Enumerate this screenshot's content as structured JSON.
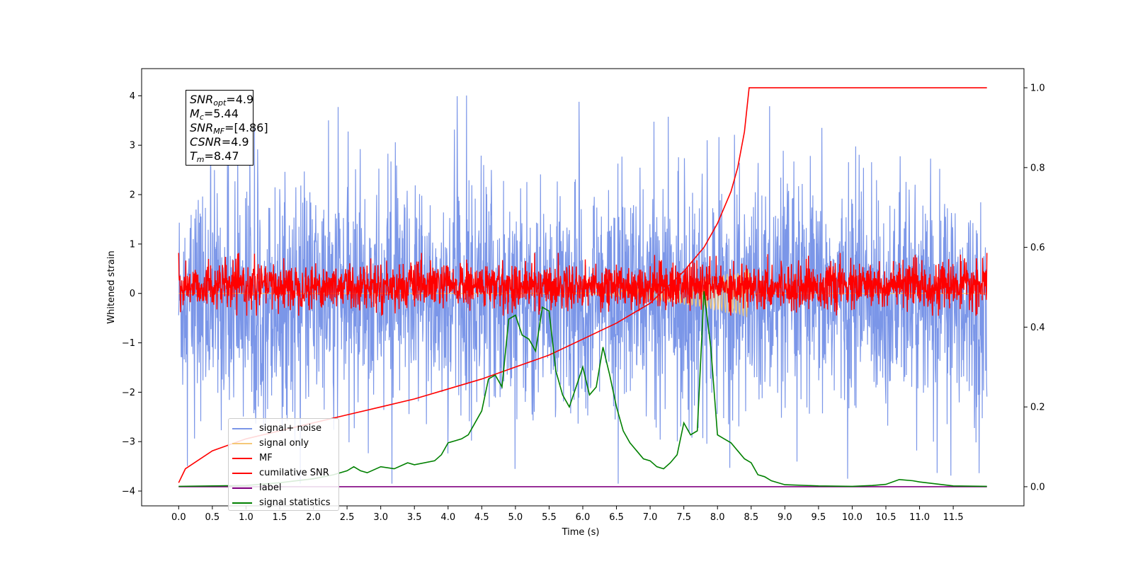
{
  "chart_data": {
    "type": "line",
    "title": "",
    "xlabel": "Time (s)",
    "ylabel_left": "Whitened strain",
    "ylabel_right": "",
    "xlim": [
      -0.55,
      12.55
    ],
    "ylim_left": [
      -4.3,
      4.55
    ],
    "ylim_right": [
      -0.048,
      1.048
    ],
    "x_ticks": [
      "0.0",
      "0.5",
      "1.0",
      "1.5",
      "2.0",
      "2.5",
      "3.0",
      "3.5",
      "4.0",
      "4.5",
      "5.0",
      "5.5",
      "6.0",
      "6.5",
      "7.0",
      "7.5",
      "8.0",
      "8.5",
      "9.0",
      "9.5",
      "10.0",
      "10.5",
      "11.0",
      "11.5"
    ],
    "y_ticks_left": [
      "−4",
      "−3",
      "−2",
      "−1",
      "0",
      "1",
      "2",
      "3",
      "4"
    ],
    "y_ticks_right": [
      "0.0",
      "0.2",
      "0.4",
      "0.6",
      "0.8",
      "1.0"
    ],
    "grid": false,
    "legend_position": "lower-left",
    "annotations": [
      {
        "main": "SNR",
        "sub": "opt",
        "value": "=4.9"
      },
      {
        "main": "M",
        "sub": "c",
        "value": "=5.44"
      },
      {
        "main": "SNR",
        "sub": "MF",
        "value": "=[4.86]"
      },
      {
        "main": "CSNR",
        "sub": "",
        "value": "=4.9"
      },
      {
        "main": "T",
        "sub": "m",
        "value": "=8.47"
      }
    ],
    "series": [
      {
        "name": "signal+ noise",
        "color": "#7b96e8",
        "axis": "left",
        "kind": "noise",
        "t_range": [
          0,
          12
        ],
        "envelope_typical": [
          -2.1,
          1.9
        ],
        "extremes_max": 4.15,
        "extremes_min": -3.85
      },
      {
        "name": "signal only",
        "color": "#f5c878",
        "axis": "left",
        "kind": "chirp",
        "t_range": [
          0,
          12
        ],
        "peak_time": 8.47,
        "peak_amplitude": 0.5
      },
      {
        "name": "MF",
        "color": "#ff0000",
        "axis": "left",
        "kind": "noise",
        "t_range": [
          0,
          12
        ],
        "envelope_typical": [
          -0.3,
          0.6
        ],
        "start_value": 1.0,
        "end_value": 1.0
      },
      {
        "name": "cumilative SNR",
        "color": "#ff0000",
        "axis": "right",
        "x": [
          0.0,
          0.1,
          0.5,
          1.0,
          1.5,
          2.0,
          2.5,
          3.0,
          3.5,
          4.0,
          4.5,
          5.0,
          5.5,
          6.0,
          6.5,
          7.0,
          7.5,
          7.8,
          8.0,
          8.2,
          8.3,
          8.4,
          8.47,
          9.0,
          10.0,
          11.0,
          11.5,
          12.0
        ],
        "y": [
          0.01,
          0.045,
          0.09,
          0.12,
          0.14,
          0.16,
          0.18,
          0.2,
          0.22,
          0.245,
          0.27,
          0.3,
          0.33,
          0.37,
          0.41,
          0.46,
          0.54,
          0.6,
          0.66,
          0.74,
          0.8,
          0.89,
          1.0,
          1.0,
          1.0,
          1.0,
          1.0,
          1.0
        ]
      },
      {
        "name": "label",
        "color": "#800080",
        "axis": "right",
        "x": [
          0.0,
          12.0
        ],
        "y": [
          0.0,
          0.0
        ]
      },
      {
        "name": "signal statistics",
        "color": "#008000",
        "axis": "right",
        "x": [
          0.0,
          0.5,
          1.0,
          1.5,
          2.0,
          2.3,
          2.5,
          2.6,
          2.7,
          2.8,
          3.0,
          3.2,
          3.4,
          3.5,
          3.8,
          3.9,
          4.0,
          4.1,
          4.2,
          4.3,
          4.4,
          4.5,
          4.6,
          4.7,
          4.8,
          4.9,
          5.0,
          5.1,
          5.2,
          5.3,
          5.4,
          5.5,
          5.6,
          5.7,
          5.8,
          5.9,
          6.0,
          6.1,
          6.2,
          6.3,
          6.4,
          6.5,
          6.6,
          6.7,
          6.8,
          6.9,
          7.0,
          7.1,
          7.2,
          7.3,
          7.4,
          7.5,
          7.6,
          7.7,
          7.8,
          7.9,
          8.0,
          8.1,
          8.2,
          8.3,
          8.4,
          8.5,
          8.6,
          8.7,
          8.8,
          9.0,
          9.5,
          10.0,
          10.3,
          10.5,
          10.7,
          10.9,
          11.0,
          11.2,
          11.5,
          12.0
        ],
        "y": [
          0.001,
          0.002,
          0.003,
          0.01,
          0.02,
          0.03,
          0.04,
          0.05,
          0.04,
          0.035,
          0.05,
          0.045,
          0.06,
          0.055,
          0.065,
          0.08,
          0.11,
          0.115,
          0.12,
          0.13,
          0.16,
          0.19,
          0.27,
          0.28,
          0.25,
          0.42,
          0.43,
          0.38,
          0.37,
          0.34,
          0.45,
          0.44,
          0.29,
          0.23,
          0.2,
          0.25,
          0.3,
          0.23,
          0.25,
          0.35,
          0.28,
          0.2,
          0.14,
          0.11,
          0.09,
          0.07,
          0.065,
          0.05,
          0.045,
          0.06,
          0.08,
          0.16,
          0.13,
          0.14,
          0.49,
          0.35,
          0.13,
          0.12,
          0.11,
          0.09,
          0.07,
          0.06,
          0.03,
          0.025,
          0.015,
          0.005,
          0.002,
          0.001,
          0.003,
          0.006,
          0.018,
          0.015,
          0.012,
          0.008,
          0.002,
          0.001
        ]
      }
    ]
  }
}
